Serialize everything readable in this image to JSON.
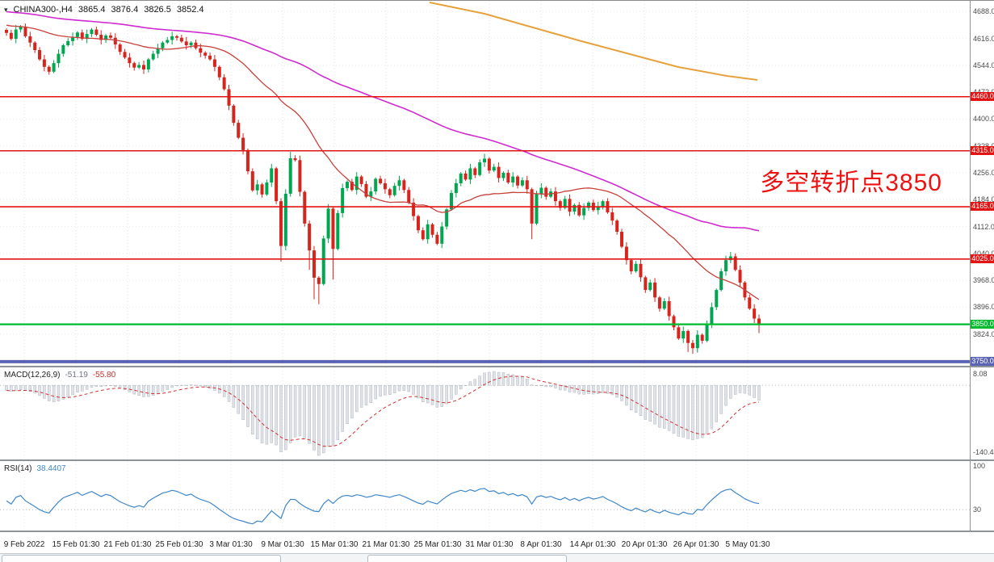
{
  "header": {
    "symbol_timeframe": "CHINA300-,H4",
    "open": "3865.4",
    "high": "3876.4",
    "low": "3826.5",
    "close": "3852.4"
  },
  "annotation": {
    "text": "多空转折点3850",
    "color": "#ee1111"
  },
  "macd": {
    "name": "MACD(12,26,9)",
    "main_value": "-51.19",
    "signal_value": "-55.80",
    "axis_max": "8.08",
    "axis_min": "-140.44"
  },
  "rsi": {
    "name": "RSI(14)",
    "value": "38.4407",
    "axis_top": "100",
    "axis_level": "30"
  },
  "main_chart": {
    "price_axis_labels": [
      "4688.0",
      "4616.0",
      "4544.0",
      "4472.0",
      "4400.0",
      "4328.0",
      "4256.0",
      "4184.0",
      "4112.0",
      "4040.0",
      "3968.0",
      "3896.0",
      "3824.0"
    ],
    "levels": [
      {
        "price": 4460.0,
        "label": "4460.0",
        "color": "#e21414",
        "width": 1.6
      },
      {
        "price": 4315.0,
        "label": "4315.0",
        "color": "#e21414",
        "width": 1.6
      },
      {
        "price": 4165.0,
        "label": "4165.0",
        "color": "#e21414",
        "width": 1.6
      },
      {
        "price": 4025.0,
        "label": "4025.0",
        "color": "#e21414",
        "width": 1.6
      },
      {
        "price": 3850.0,
        "label": "3850.0",
        "color": "#00bb2d",
        "width": 2.2
      },
      {
        "price": 3750.0,
        "label": "3750.0",
        "color": "#5a64b4",
        "width": 4
      }
    ]
  },
  "time_axis": {
    "labels": [
      "9 Feb 2022",
      "15 Feb 01:30",
      "21 Feb 01:30",
      "25 Feb 01:30",
      "3 Mar 01:30",
      "9 Mar 01:30",
      "15 Mar 01:30",
      "21 Mar 01:30",
      "25 Mar 01:30",
      "31 Mar 01:30",
      "8 Apr 01:30",
      "14 Apr 01:30",
      "20 Apr 01:30",
      "26 Apr 01:30",
      "5 May 01:30"
    ]
  },
  "colors": {
    "bull": "#00a650",
    "bear": "#d6251d",
    "grid": "#dcdcdc",
    "grid_h": "#ececec",
    "ma_slow": "#cf2bcf",
    "ma_fast": "#c8403a",
    "ma_long": "#e6a23c",
    "macd_hist_fill": "#dfe2e8",
    "macd_hist_stroke": "#b3b7bf",
    "macd_signal": "#cf3333",
    "rsi_line": "#3f87c9",
    "axis_text": "#4c4c4c"
  },
  "chart_data": {
    "type": "candlestick",
    "symbol": "CHINA300-",
    "timeframe": "H4",
    "title": "CHINA300- H4 candlestick chart with MACD and RSI",
    "x_range": [
      "9 Feb 2022",
      "5 May 2022"
    ],
    "y_range": [
      3739,
      4704
    ],
    "current_ohlc": {
      "open": 3865.4,
      "high": 3876.4,
      "low": 3826.5,
      "close": 3852.4
    },
    "horizontal_levels": [
      4460.0,
      4315.0,
      4165.0,
      4025.0,
      3850.0,
      3750.0
    ],
    "annotation_text": "多空转折点3850",
    "approx_closes": [
      4631,
      4615,
      4640,
      4648,
      4622,
      4605,
      4585,
      4560,
      4540,
      4527,
      4550,
      4575,
      4598,
      4609,
      4620,
      4632,
      4615,
      4628,
      4640,
      4626,
      4612,
      4624,
      4618,
      4600,
      4580,
      4565,
      4550,
      4538,
      4545,
      4533,
      4560,
      4575,
      4590,
      4605,
      4612,
      4622,
      4618,
      4608,
      4598,
      4605,
      4590,
      4578,
      4570,
      4560,
      4540,
      4512,
      4480,
      4436,
      4390,
      4350,
      4317,
      4260,
      4209,
      4225,
      4198,
      4230,
      4268,
      4180,
      4060,
      4200,
      4295,
      4290,
      4205,
      4120,
      4048,
      3975,
      3958,
      4080,
      4160,
      4052,
      4148,
      4215,
      4232,
      4210,
      4246,
      4226,
      4192,
      4206,
      4240,
      4228,
      4212,
      4196,
      4221,
      4236,
      4210,
      4176,
      4140,
      4102,
      4078,
      4118,
      4090,
      4066,
      4112,
      4158,
      4202,
      4228,
      4254,
      4238,
      4268,
      4250,
      4284,
      4294,
      4262,
      4272,
      4242,
      4256,
      4230,
      4246,
      4222,
      4236,
      4212,
      4120,
      4200,
      4216,
      4192,
      4206,
      4180,
      4162,
      4186,
      4152,
      4170,
      4142,
      4162,
      4176,
      4156,
      4166,
      4180,
      4150,
      4128,
      4098,
      4058,
      4022,
      3992,
      4012,
      3976,
      3942,
      3962,
      3922,
      3892,
      3912,
      3872,
      3842,
      3812,
      3832,
      3800,
      3786,
      3822,
      3806,
      3852,
      3896,
      3942,
      3992,
      4022,
      4032,
      3996,
      3962,
      3922,
      3892,
      3865.4,
      3852.4
    ],
    "wick_overrides": {
      "58": {
        "low": 4018
      },
      "60": {
        "high": 4312
      },
      "64": {
        "low": 3996
      },
      "65": {
        "low": 3917
      },
      "66": {
        "low": 3904
      },
      "69": {
        "low": 3970
      },
      "101": {
        "high": 4307
      },
      "111": {
        "low": 4078
      },
      "144": {
        "low": 3776
      },
      "145": {
        "low": 3771
      },
      "153": {
        "high": 4044
      },
      "159": {
        "high": 3876.4,
        "low": 3826.5
      }
    },
    "ma_warmup": {
      "start": 4780,
      "end": 4635,
      "count": 120
    },
    "moving_averages": [
      {
        "name": "ma-slow",
        "period": 90,
        "color": "#cf2bcf"
      },
      {
        "name": "ma-fast",
        "period": 30,
        "color": "#c8403a"
      }
    ],
    "orange_ma_points": [
      [
        532,
        2
      ],
      [
        600,
        16
      ],
      [
        660,
        33
      ],
      [
        720,
        50
      ],
      [
        780,
        66
      ],
      [
        840,
        82
      ],
      [
        900,
        93
      ],
      [
        938,
        98
      ]
    ],
    "indicators": {
      "macd": {
        "params": [
          12,
          26,
          9
        ],
        "current_main": -51.19,
        "current_signal": -55.8,
        "axis_max": 8.08,
        "axis_min": -140.44
      },
      "rsi": {
        "period": 14,
        "current": 38.4407,
        "level_shown": 30,
        "axis_top": 100
      }
    }
  }
}
